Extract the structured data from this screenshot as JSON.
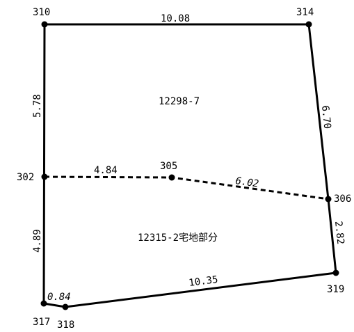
{
  "points": {
    "p310": "310",
    "p314": "314",
    "p302": "302",
    "p305": "305",
    "p306": "306",
    "p317": "317",
    "p318": "318",
    "p319": "319"
  },
  "parcels": {
    "upper": "12298-7",
    "lower": "12315-2宅地部分"
  },
  "distances": {
    "d310_314": "10.08",
    "d310_302": "5.78",
    "d314_306": "6.70",
    "d302_305": "4.84",
    "d305_306": "6.02",
    "d302_317": "4.89",
    "d306_319": "2.82",
    "d317_318": "0.84",
    "d318_319": "10.35"
  }
}
